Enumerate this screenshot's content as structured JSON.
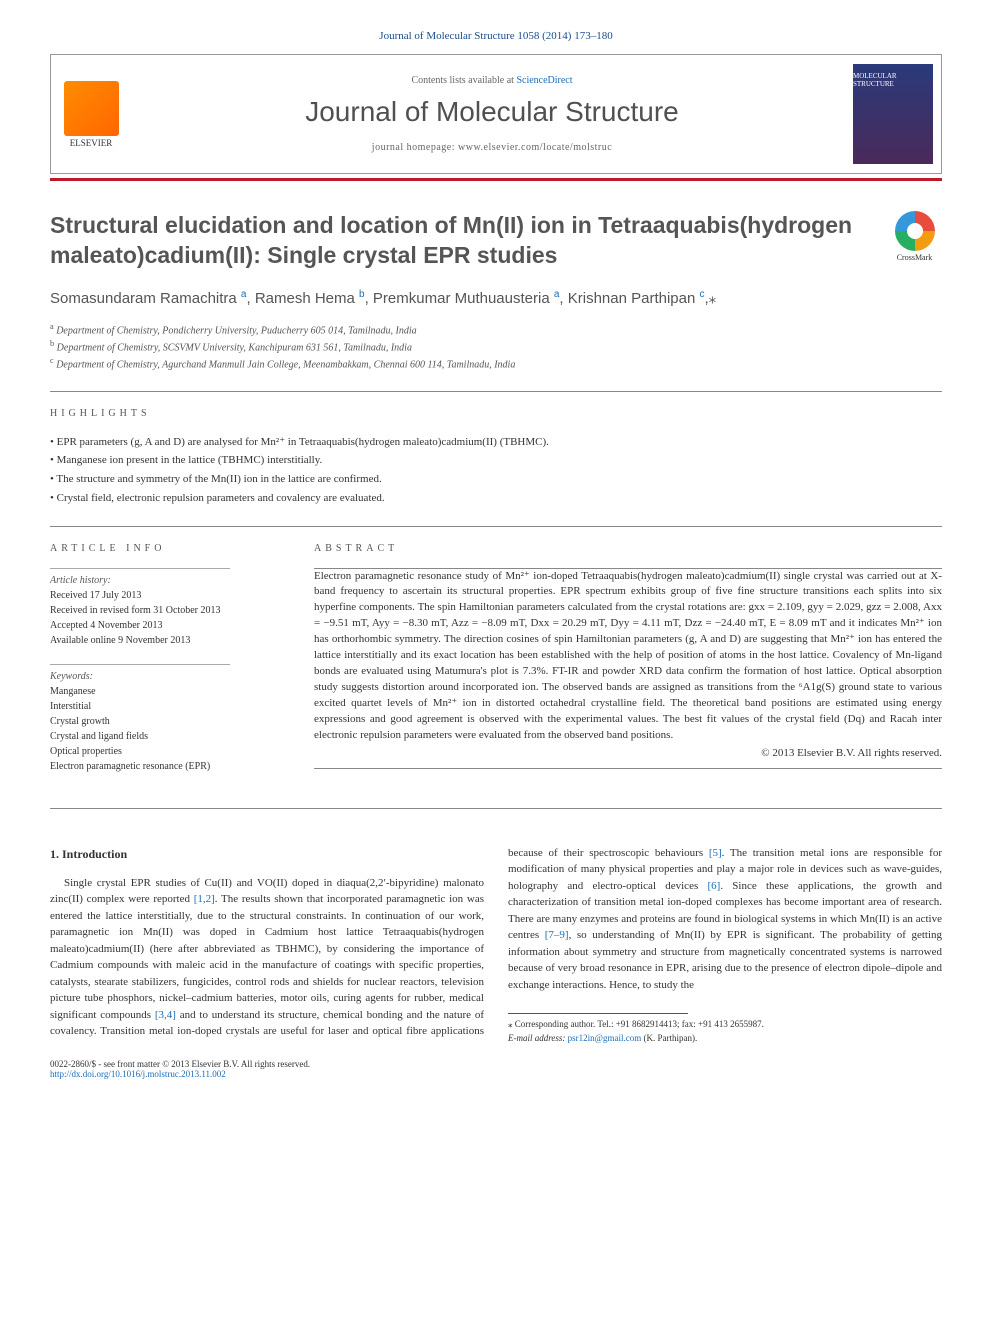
{
  "citation": "Journal of Molecular Structure 1058 (2014) 173–180",
  "header": {
    "contents_prefix": "Contents lists available at ",
    "contents_link": "ScienceDirect",
    "journal_name": "Journal of Molecular Structure",
    "homepage_prefix": "journal homepage: ",
    "homepage": "www.elsevier.com/locate/molstruc",
    "publisher": "ELSEVIER",
    "cover_text": "MOLECULAR STRUCTURE"
  },
  "crossmark": "CrossMark",
  "title": "Structural elucidation and location of Mn(II) ion in Tetraaquabis(hydrogen maleato)cadium(II): Single crystal EPR studies",
  "authors": [
    {
      "name": "Somasundaram Ramachitra",
      "aff": "a"
    },
    {
      "name": "Ramesh Hema",
      "aff": "b"
    },
    {
      "name": "Premkumar Muthuausteria",
      "aff": "a"
    },
    {
      "name": "Krishnan Parthipan",
      "aff": "c",
      "corresponding": true
    }
  ],
  "affiliations": [
    {
      "sup": "a",
      "text": "Department of Chemistry, Pondicherry University, Puducherry 605 014, Tamilnadu, India"
    },
    {
      "sup": "b",
      "text": "Department of Chemistry, SCSVMV University, Kanchipuram 631 561, Tamilnadu, India"
    },
    {
      "sup": "c",
      "text": "Department of Chemistry, Agurchand Manmull Jain College, Meenambakkam, Chennai 600 114, Tamilnadu, India"
    }
  ],
  "highlights_label": "HIGHLIGHTS",
  "highlights": [
    "EPR parameters (g, A and D) are analysed for Mn²⁺ in Tetraaquabis(hydrogen maleato)cadmium(II) (TBHMC).",
    "Manganese ion present in the lattice (TBHMC) interstitially.",
    "The structure and symmetry of the Mn(II) ion in the lattice are confirmed.",
    "Crystal field, electronic repulsion parameters and covalency are evaluated."
  ],
  "article_info_label": "ARTICLE INFO",
  "history": {
    "heading": "Article history:",
    "received": "Received 17 July 2013",
    "revised": "Received in revised form 31 October 2013",
    "accepted": "Accepted 4 November 2013",
    "online": "Available online 9 November 2013"
  },
  "keywords": {
    "heading": "Keywords:",
    "items": [
      "Manganese",
      "Interstitial",
      "Crystal growth",
      "Crystal and ligand fields",
      "Optical properties",
      "Electron paramagnetic resonance (EPR)"
    ]
  },
  "abstract_label": "ABSTRACT",
  "abstract": "Electron paramagnetic resonance study of Mn²⁺ ion-doped Tetraaquabis(hydrogen maleato)cadmium(II) single crystal was carried out at X-band frequency to ascertain its structural properties. EPR spectrum exhibits group of five fine structure transitions each splits into six hyperfine components. The spin Hamiltonian parameters calculated from the crystal rotations are: gxx = 2.109, gyy = 2.029, gzz = 2.008, Axx = −9.51 mT, Ayy = −8.30 mT, Azz = −8.09 mT, Dxx = 20.29 mT, Dyy = 4.11 mT, Dzz = −24.40 mT, E = 8.09 mT and it indicates Mn²⁺ ion has orthorhombic symmetry. The direction cosines of spin Hamiltonian parameters (g, A and D) are suggesting that Mn²⁺ ion has entered the lattice interstitially and its exact location has been established with the help of position of atoms in the host lattice. Covalency of Mn-ligand bonds are evaluated using Matumura's plot is 7.3%. FT-IR and powder XRD data confirm the formation of host lattice. Optical absorption study suggests distortion around incorporated ion. The observed bands are assigned as transitions from the ⁶A1g(S) ground state to various excited quartet levels of Mn²⁺ ion in distorted octahedral crystalline field. The theoretical band positions are estimated using energy expressions and good agreement is observed with the experimental values. The best fit values of the crystal field (Dq) and Racah inter electronic repulsion parameters were evaluated from the observed band positions.",
  "abstract_copyright": "© 2013 Elsevier B.V. All rights reserved.",
  "intro": {
    "heading": "1. Introduction",
    "p1a": "Single crystal EPR studies of Cu(II) and VO(II) doped in diaqua(2,2′-bipyridine) malonato zinc(II) complex were reported ",
    "ref12": "[1,2]",
    "p1b": ". The results shown that incorporated paramagnetic ion was entered the lattice interstitially, due to the structural constraints. In continuation of our work, paramagnetic ion Mn(II) was doped in Cadmium host lattice Tetraaquabis(hydrogen maleato)cadmium(II) (here after abbreviated as TBHMC), by considering the importance of Cadmium compounds with maleic acid in the manufacture of coatings with specific properties, catalysts, stearate stabilizers, fungicides, control rods and shields for nuclear reactors, television picture tube phosphors, nickel–cadmium batteries, motor oils, curing agents for rubber, medical significant compounds ",
    "ref34": "[3,4]",
    "p1c": " and to understand its structure, chemical bonding and the nature of covalency. Transition metal ion-doped crystals are useful for laser and optical fibre applications because of their spectroscopic behaviours ",
    "ref5": "[5]",
    "p1d": ". The transition metal ions are responsible for modification of many physical properties and play a major role in devices such as wave-guides, holography and electro-optical devices ",
    "ref6": "[6]",
    "p1e": ". Since these applications, the growth and characterization of transition metal ion-doped complexes has become important area of research. There are many enzymes and proteins are found in biological systems in which Mn(II) is an active centres ",
    "ref79": "[7–9]",
    "p1f": ", so understanding of Mn(II) by EPR is significant. The probability of getting information about symmetry and structure from magnetically concentrated systems is narrowed because of very broad resonance in EPR, arising due to the presence of electron dipole–dipole and exchange interactions. Hence, to study the"
  },
  "footnote": {
    "corresponding": "⁎ Corresponding author. Tel.: +91 8682914413; fax: +91 413 2655987.",
    "email_label": "E-mail address: ",
    "email": "psr12in@gmail.com",
    "email_suffix": " (K. Parthipan)."
  },
  "footer": {
    "issn": "0022-2860/$ - see front matter © 2013 Elsevier B.V. All rights reserved.",
    "doi": "http://dx.doi.org/10.1016/j.molstruc.2013.11.002"
  },
  "colors": {
    "accent_bar": "#bc1a29",
    "link": "#1a6db8",
    "text": "#333333"
  }
}
